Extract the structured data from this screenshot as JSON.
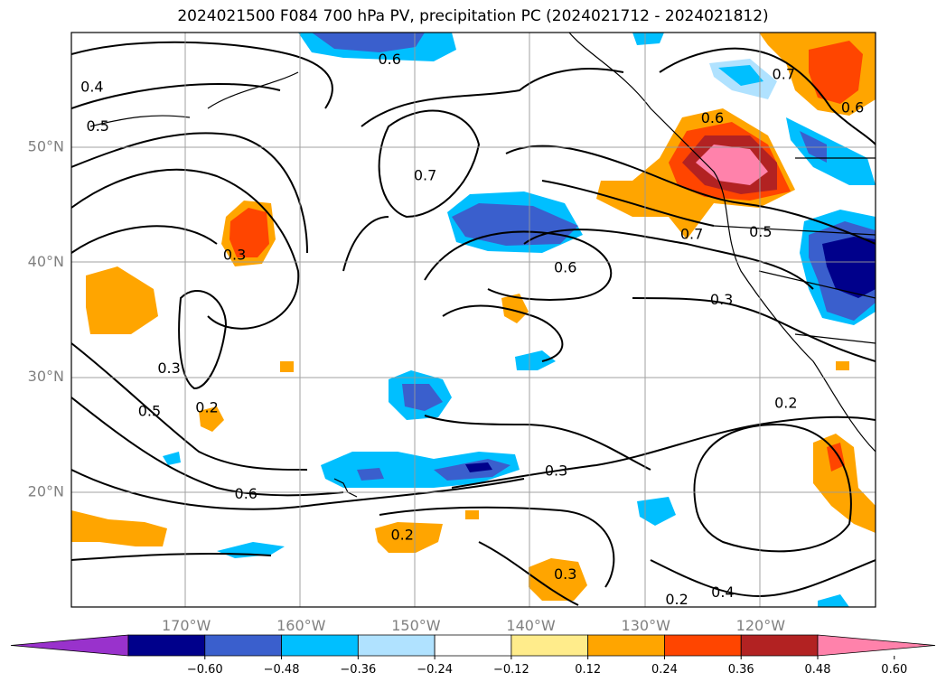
{
  "title": "2024021500 F084 700 hPa PV, precipitation PC (2024021712 - 2024021812)",
  "map": {
    "lon_range": [
      -180,
      -110
    ],
    "lat_range": [
      10,
      60
    ],
    "lat_ticks": [
      {
        "lat": 50,
        "label": "50°N"
      },
      {
        "lat": 40,
        "label": "40°N"
      },
      {
        "lat": 30,
        "label": "30°N"
      },
      {
        "lat": 20,
        "label": "20°N"
      }
    ],
    "lon_ticks": [
      {
        "lon": -170,
        "label": "170°W"
      },
      {
        "lon": -160,
        "label": "160°W"
      },
      {
        "lon": -150,
        "label": "150°W"
      },
      {
        "lon": -140,
        "label": "140°W"
      },
      {
        "lon": -130,
        "label": "130°W"
      },
      {
        "lon": -120,
        "label": "120°W"
      }
    ],
    "grid": true,
    "contour_labels": [
      {
        "text": "0.4",
        "lon": -178.2,
        "lat": 55.2
      },
      {
        "text": "0.5",
        "lon": -177.7,
        "lat": 51.8
      },
      {
        "text": "0.6",
        "lon": -152.3,
        "lat": 57.6
      },
      {
        "text": "0.7",
        "lon": -149.2,
        "lat": 47.5
      },
      {
        "text": "0.3",
        "lon": -165.8,
        "lat": 40.6
      },
      {
        "text": "0.6",
        "lon": -137.0,
        "lat": 39.5
      },
      {
        "text": "0.6",
        "lon": -124.2,
        "lat": 52.5
      },
      {
        "text": "0.7",
        "lon": -118.0,
        "lat": 56.3
      },
      {
        "text": "0.6",
        "lon": -112.0,
        "lat": 53.4
      },
      {
        "text": "0.7",
        "lon": -126.0,
        "lat": 42.4
      },
      {
        "text": "0.5",
        "lon": -120.0,
        "lat": 42.6
      },
      {
        "text": "0.3",
        "lon": -123.4,
        "lat": 36.7
      },
      {
        "text": "0.3",
        "lon": -171.5,
        "lat": 30.7
      },
      {
        "text": "0.2",
        "lon": -168.2,
        "lat": 27.3
      },
      {
        "text": "0.5",
        "lon": -173.2,
        "lat": 27.0
      },
      {
        "text": "0.6",
        "lon": -164.8,
        "lat": 19.8
      },
      {
        "text": "0.3",
        "lon": -137.8,
        "lat": 21.8
      },
      {
        "text": "0.2",
        "lon": -117.8,
        "lat": 27.7
      },
      {
        "text": "0.2",
        "lon": -151.2,
        "lat": 16.2
      },
      {
        "text": "0.3",
        "lon": -137.0,
        "lat": 12.8
      },
      {
        "text": "0.4",
        "lon": -123.3,
        "lat": 11.2
      },
      {
        "text": "0.2",
        "lon": -127.3,
        "lat": 10.6
      }
    ]
  },
  "colorbar": {
    "colors": [
      "#9932cc",
      "#00008b",
      "#3a5fcd",
      "#00bfff",
      "#b0e2ff",
      "#ffffff",
      "#ffec8b",
      "#ffa500",
      "#ff4500",
      "#b22222",
      "#ff82ab"
    ],
    "labels": [
      "−0.60",
      "−0.48",
      "−0.36",
      "−0.24",
      "−0.12",
      "0.12",
      "0.24",
      "0.36",
      "0.48",
      "0.60"
    ]
  }
}
